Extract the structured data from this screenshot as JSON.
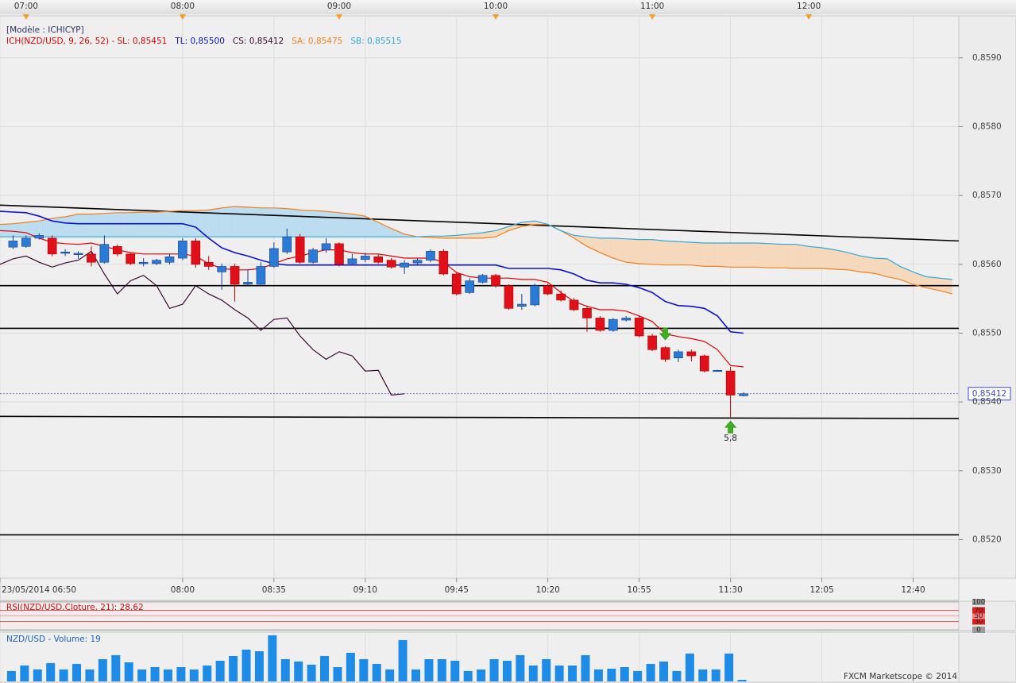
{
  "chart_data": {
    "type": "candlestick",
    "header": "[Modèle : ICHICYP]",
    "indicator_labels": [
      {
        "text": "ICH(NZD/USD, 9, 26, 52) -  SL: 0,85451",
        "color": "#e00000"
      },
      {
        "text": "TL: 0,85500",
        "color": "#1010c8"
      },
      {
        "text": "CS: 0,85412",
        "color": "#3a0a30"
      },
      {
        "text": "SA: 0,85475",
        "color": "#f08020"
      },
      {
        "text": "SB: 0,85515",
        "color": "#30a8d8"
      }
    ],
    "categories": [
      "23/05/2014 06:50",
      null,
      null,
      null,
      null,
      null,
      null,
      null,
      null,
      null,
      null,
      null,
      null,
      null,
      "08:00",
      null,
      null,
      null,
      null,
      null,
      null,
      "08:35",
      null,
      null,
      null,
      null,
      null,
      null,
      "09:10",
      null,
      null,
      null,
      null,
      null,
      null,
      "09:45",
      null,
      null,
      null,
      null,
      null,
      null,
      "10:20",
      null,
      null,
      null,
      null,
      null,
      null,
      "10:55",
      null,
      null,
      null,
      null,
      null,
      null,
      "11:30",
      null,
      null,
      null,
      null,
      null,
      null,
      "12:05",
      null,
      null,
      null,
      null,
      null,
      null,
      "12:40",
      null,
      null,
      null
    ],
    "hours": [
      null,
      null,
      "07:00",
      null,
      null,
      null,
      null,
      null,
      null,
      null,
      null,
      null,
      null,
      null,
      "08:00",
      null,
      null,
      null,
      null,
      null,
      null,
      null,
      null,
      null,
      null,
      null,
      "09:00",
      null,
      null,
      null,
      null,
      null,
      null,
      null,
      null,
      null,
      null,
      null,
      "10:00",
      null,
      null,
      null,
      null,
      null,
      null,
      null,
      null,
      null,
      null,
      null,
      "11:00",
      null,
      null,
      null,
      null,
      null,
      null,
      null,
      null,
      null,
      null,
      null,
      "12:00",
      null,
      null,
      null,
      null,
      null,
      null,
      null,
      null,
      null,
      null,
      null
    ],
    "ohlc": [
      null,
      [
        0.85625,
        0.85642,
        0.85622,
        0.85634
      ],
      [
        0.85626,
        0.85642,
        0.85624,
        0.85638
      ],
      [
        0.85638,
        0.85645,
        0.85636,
        0.85642
      ],
      [
        0.85638,
        0.85642,
        0.85612,
        0.85615
      ],
      [
        0.85616,
        0.85622,
        0.85612,
        0.85618
      ],
      [
        0.85614,
        0.85619,
        0.85608,
        0.85616
      ],
      [
        0.85615,
        0.85626,
        0.85597,
        0.85603
      ],
      [
        0.85603,
        0.85642,
        0.85601,
        0.85629
      ],
      [
        0.85626,
        0.85629,
        0.85612,
        0.85615
      ],
      [
        0.85615,
        0.85617,
        0.85599,
        0.85601
      ],
      [
        0.85601,
        0.85609,
        0.85597,
        0.85603
      ],
      [
        0.85601,
        0.85608,
        0.85599,
        0.85606
      ],
      [
        0.85603,
        0.85615,
        0.856,
        0.85611
      ],
      [
        0.85609,
        0.85638,
        0.85606,
        0.85634
      ],
      [
        0.85634,
        0.85638,
        0.85595,
        0.856
      ],
      [
        0.85603,
        0.85612,
        0.85592,
        0.85597
      ],
      [
        0.85589,
        0.85601,
        0.85563,
        0.85597
      ],
      [
        0.85597,
        0.85601,
        0.85546,
        0.85571
      ],
      [
        0.85571,
        0.85592,
        0.85569,
        0.85574
      ],
      [
        0.85571,
        0.85603,
        0.85569,
        0.85597
      ],
      [
        0.85597,
        0.85632,
        0.85595,
        0.85623
      ],
      [
        0.85618,
        0.85652,
        0.85615,
        0.8564
      ],
      [
        0.8564,
        0.85644,
        0.85601,
        0.85603
      ],
      [
        0.85603,
        0.85624,
        0.85601,
        0.85621
      ],
      [
        0.85621,
        0.85638,
        0.85617,
        0.8563
      ],
      [
        0.8563,
        0.85632,
        0.85597,
        0.856
      ],
      [
        0.85601,
        0.85615,
        0.856,
        0.85608
      ],
      [
        0.85607,
        0.85617,
        0.85603,
        0.85612
      ],
      [
        0.85611,
        0.85615,
        0.85601,
        0.85603
      ],
      [
        0.85606,
        0.85609,
        0.85594,
        0.85596
      ],
      [
        0.85596,
        0.85606,
        0.85586,
        0.85602
      ],
      [
        0.85602,
        0.85609,
        0.856,
        0.85606
      ],
      [
        0.85606,
        0.85622,
        0.85603,
        0.85619
      ],
      [
        0.85619,
        0.85622,
        0.85584,
        0.85586
      ],
      [
        0.85586,
        0.85588,
        0.85555,
        0.85557
      ],
      [
        0.85559,
        0.8558,
        0.85557,
        0.85576
      ],
      [
        0.85574,
        0.85586,
        0.85572,
        0.85584
      ],
      [
        0.85584,
        0.85586,
        0.85566,
        0.85569
      ],
      [
        0.85569,
        0.85571,
        0.85534,
        0.85536
      ],
      [
        0.85539,
        0.85557,
        0.85534,
        0.85542
      ],
      [
        0.85541,
        0.85572,
        0.85539,
        0.85569
      ],
      [
        0.85569,
        0.85572,
        0.85555,
        0.85557
      ],
      [
        0.85557,
        0.85562,
        0.85546,
        0.85548
      ],
      [
        0.85548,
        0.85551,
        0.85532,
        0.85534
      ],
      [
        0.85536,
        0.8554,
        0.85502,
        0.85522
      ],
      [
        0.85522,
        0.85525,
        0.85502,
        0.85504
      ],
      [
        0.85504,
        0.85522,
        0.85502,
        0.8552
      ],
      [
        0.85519,
        0.85525,
        0.85517,
        0.85522
      ],
      [
        0.85522,
        0.85525,
        0.85494,
        0.85496
      ],
      [
        0.85496,
        0.85499,
        0.85474,
        0.85476
      ],
      [
        0.85479,
        0.85481,
        0.85458,
        0.85462
      ],
      [
        0.85464,
        0.85476,
        0.85458,
        0.85473
      ],
      [
        0.85473,
        0.85476,
        0.85459,
        0.85467
      ],
      [
        0.85467,
        0.85469,
        0.85443,
        0.85445
      ],
      [
        0.85445,
        0.85447,
        0.85444,
        0.85446
      ],
      [
        0.85445,
        0.85451,
        0.85378,
        0.8541
      ],
      [
        0.85409,
        0.85414,
        0.85408,
        0.85412
      ],
      null,
      null,
      null,
      null,
      null,
      null,
      null,
      null,
      null,
      null,
      null,
      null,
      null,
      null,
      null,
      null
    ],
    "candle_colors": {
      "up": "#2b7bd6",
      "up_edge": "#1a3d8a",
      "down": "#e0101a",
      "down_edge": "#b00000"
    },
    "cloud_colors": {
      "up": "#bcdcf0",
      "down": "#f6d9bd"
    },
    "series": [
      {
        "color": "#f08020",
        "values": [
          0.85658,
          0.85659,
          0.85661,
          0.85663,
          0.85667,
          0.85669,
          0.85673,
          0.85673,
          0.85674,
          0.85675,
          0.85675,
          0.85676,
          0.85676,
          0.85677,
          0.85678,
          0.85678,
          0.85679,
          0.85682,
          0.85684,
          0.85683,
          0.85682,
          0.85682,
          0.85681,
          0.85679,
          0.85678,
          0.85677,
          0.85675,
          0.85673,
          0.8567,
          0.85661,
          0.85652,
          0.85644,
          0.8564,
          0.85639,
          0.85638,
          0.85638,
          0.85638,
          0.85638,
          0.8564,
          0.85649,
          0.85655,
          0.85658,
          0.85658,
          0.85649,
          0.85638,
          0.85626,
          0.85617,
          0.85609,
          0.85603,
          0.85601,
          0.856,
          0.85599,
          0.85599,
          0.85599,
          0.85597,
          0.85597,
          0.85596,
          0.85596,
          0.85596,
          0.85595,
          0.85595,
          0.85594,
          0.85594,
          0.85594,
          0.85593,
          0.85592,
          0.85589,
          0.85587,
          0.85582,
          0.85578,
          0.85571,
          0.85566,
          0.85562,
          0.85557
        ]
      },
      {
        "color": "#30a8d8",
        "values": [
          0.8564,
          0.8564,
          0.8564,
          0.8564,
          0.8564,
          0.8564,
          0.8564,
          0.8564,
          0.8564,
          0.8564,
          0.8564,
          0.8564,
          0.8564,
          0.8564,
          0.8564,
          0.8564,
          0.8564,
          0.8564,
          0.8564,
          0.8564,
          0.8564,
          0.8564,
          0.8564,
          0.8564,
          0.8564,
          0.8564,
          0.8564,
          0.8564,
          0.8564,
          0.8564,
          0.8564,
          0.8564,
          0.8564,
          0.85641,
          0.85641,
          0.85642,
          0.85644,
          0.85646,
          0.85649,
          0.85655,
          0.85661,
          0.85663,
          0.85658,
          0.85649,
          0.85642,
          0.8564,
          0.85638,
          0.85638,
          0.85637,
          0.85636,
          0.85636,
          0.85634,
          0.85633,
          0.85632,
          0.85631,
          0.85631,
          0.85631,
          0.85631,
          0.85631,
          0.8563,
          0.85629,
          0.85629,
          0.85626,
          0.85624,
          0.85621,
          0.85617,
          0.85612,
          0.85609,
          0.85608,
          0.85597,
          0.85589,
          0.85582,
          0.8558,
          0.85578
        ]
      },
      {
        "color": "#e00000",
        "values": [
          0.85649,
          0.85648,
          0.85646,
          0.85638,
          0.85632,
          0.8563,
          0.85629,
          0.85631,
          0.85626,
          0.85621,
          0.85617,
          0.85615,
          0.85615,
          0.85615,
          0.85615,
          0.85612,
          0.85601,
          0.85594,
          0.85592,
          0.85592,
          0.85594,
          0.85601,
          0.85608,
          0.85612,
          0.85617,
          0.85621,
          0.85621,
          0.85617,
          0.85615,
          0.85615,
          0.85612,
          0.85609,
          0.85609,
          0.85609,
          0.85603,
          0.85588,
          0.85582,
          0.8558,
          0.8558,
          0.8558,
          0.85578,
          0.85578,
          0.85574,
          0.85559,
          0.85546,
          0.85539,
          0.85534,
          0.85534,
          0.85532,
          0.85525,
          0.85517,
          0.85499,
          0.85495,
          0.85492,
          0.85488,
          0.85476,
          0.85453,
          0.85451,
          null,
          null,
          null,
          null,
          null,
          null,
          null,
          null,
          null,
          null,
          null,
          null,
          null,
          null,
          null,
          null
        ]
      },
      {
        "color": "#1010c8",
        "values": [
          0.85677,
          0.85676,
          0.85675,
          0.8567,
          0.85663,
          0.8566,
          0.85659,
          0.85659,
          0.85659,
          0.85659,
          0.85659,
          0.85659,
          0.85659,
          0.85659,
          0.85659,
          0.85654,
          0.85638,
          0.85624,
          0.85617,
          0.85612,
          0.85606,
          0.85601,
          0.85599,
          0.85599,
          0.85599,
          0.85599,
          0.85599,
          0.85599,
          0.85599,
          0.85599,
          0.85599,
          0.85599,
          0.85599,
          0.85599,
          0.85599,
          0.85599,
          0.85599,
          0.85599,
          0.85599,
          0.85594,
          0.85594,
          0.85594,
          0.85594,
          0.85592,
          0.85586,
          0.85577,
          0.85573,
          0.85573,
          0.85571,
          0.85566,
          0.85559,
          0.85546,
          0.8554,
          0.85539,
          0.85536,
          0.85525,
          0.85502,
          0.855,
          null,
          null,
          null,
          null,
          null,
          null,
          null,
          null,
          null,
          null,
          null,
          null,
          null,
          null,
          null,
          null
        ]
      },
      {
        "color": "#3a0a30",
        "values": [
          0.856,
          0.85608,
          0.85612,
          0.85603,
          0.85596,
          0.85602,
          0.85606,
          0.85619,
          0.85586,
          0.85557,
          0.85576,
          0.85584,
          0.85569,
          0.85536,
          0.85542,
          0.85569,
          0.85557,
          0.85548,
          0.85534,
          0.85522,
          0.85504,
          0.8552,
          0.85522,
          0.85496,
          0.85476,
          0.85462,
          0.85473,
          0.85467,
          0.85445,
          0.85446,
          0.8541,
          0.85412,
          null,
          null,
          null,
          null,
          null,
          null,
          null,
          null,
          null,
          null,
          null,
          null,
          null,
          null,
          null,
          null,
          null,
          null,
          null,
          null,
          null,
          null,
          null,
          null,
          null,
          null,
          null,
          null,
          null,
          null,
          null,
          null,
          null,
          null,
          null,
          null,
          null,
          null,
          null,
          null,
          null,
          null
        ]
      }
    ],
    "lines": [
      {
        "color": "#000000",
        "values": [
          0.85686,
          0.85634
        ]
      },
      {
        "color": "#000000",
        "values": [
          0.85569,
          0.85569
        ]
      },
      {
        "color": "#000000",
        "values": [
          0.85507,
          0.85507
        ]
      },
      {
        "color": "#000000",
        "values": [
          0.85379,
          0.85376
        ]
      },
      {
        "color": "#000000",
        "values": [
          0.85207,
          0.85207
        ]
      }
    ],
    "price_marker": {
      "value": 0.85412,
      "label": "0,85412",
      "color": "#3c46d8"
    },
    "signals": [
      null,
      null,
      null,
      null,
      null,
      null,
      null,
      null,
      null,
      null,
      null,
      null,
      null,
      null,
      null,
      null,
      null,
      null,
      null,
      null,
      null,
      null,
      null,
      null,
      null,
      null,
      null,
      null,
      null,
      null,
      null,
      null,
      null,
      null,
      null,
      null,
      null,
      null,
      null,
      null,
      null,
      null,
      null,
      null,
      null,
      null,
      null,
      null,
      null,
      null,
      null,
      "down",
      null,
      null,
      null,
      null,
      "up",
      null,
      null,
      null,
      null,
      null,
      null,
      null,
      null,
      null,
      null,
      null,
      null,
      null,
      null,
      null,
      null,
      null
    ],
    "signal_labels": [
      null,
      null,
      null,
      null,
      null,
      null,
      null,
      null,
      null,
      null,
      null,
      null,
      null,
      null,
      null,
      null,
      null,
      null,
      null,
      null,
      null,
      null,
      null,
      null,
      null,
      null,
      null,
      null,
      null,
      null,
      null,
      null,
      null,
      null,
      null,
      null,
      null,
      null,
      null,
      null,
      null,
      null,
      null,
      null,
      null,
      null,
      null,
      null,
      null,
      null,
      null,
      null,
      null,
      null,
      null,
      null,
      "5,8",
      null,
      null,
      null,
      null,
      null,
      null,
      null,
      null,
      null,
      null,
      null,
      null,
      null,
      null,
      null,
      null,
      null
    ],
    "signal_color": "#3cb01e",
    "ylim": [
      0.85144,
      0.85961
    ],
    "yticks": [
      {
        "value": 0.852,
        "label": "0,8520"
      },
      {
        "value": 0.853,
        "label": "0,8530"
      },
      {
        "value": 0.854,
        "label": "0,8540"
      },
      {
        "value": 0.855,
        "label": "0,8550"
      },
      {
        "value": 0.856,
        "label": "0,8560"
      },
      {
        "value": 0.857,
        "label": "0,8570"
      },
      {
        "value": 0.858,
        "label": "0,8580"
      },
      {
        "value": 0.859,
        "label": "0,8590"
      }
    ],
    "grid": true,
    "rsi": {
      "title": "RSI(NZD/USD.Cloture, 21): 28,62",
      "ylim": [
        0,
        100
      ],
      "yticks": [
        0,
        30,
        50,
        70,
        100
      ],
      "tick_colors": [
        "#9a9a9a",
        "#e02020",
        "#f08080",
        "#e02020",
        "#9a9a9a"
      ]
    },
    "volume": {
      "title": "NZD/USD - Volume: 19",
      "color": "#1e8ce6",
      "ylim": [
        0,
        560
      ],
      "values": [
        null,
        124,
        190,
        143,
        219,
        143,
        209,
        143,
        266,
        314,
        228,
        143,
        171,
        143,
        171,
        143,
        190,
        247,
        304,
        380,
        361,
        551,
        266,
        238,
        200,
        304,
        171,
        342,
        266,
        209,
        143,
        494,
        143,
        266,
        266,
        247,
        124,
        143,
        266,
        247,
        314,
        190,
        266,
        190,
        190,
        314,
        143,
        152,
        171,
        124,
        209,
        238,
        124,
        333,
        143,
        143,
        333,
        19,
        null,
        null,
        null,
        null,
        null,
        null,
        null,
        null,
        null,
        null,
        null,
        null,
        null,
        null,
        null,
        null
      ]
    },
    "footer": "FXCM Marketscope © 2014"
  }
}
